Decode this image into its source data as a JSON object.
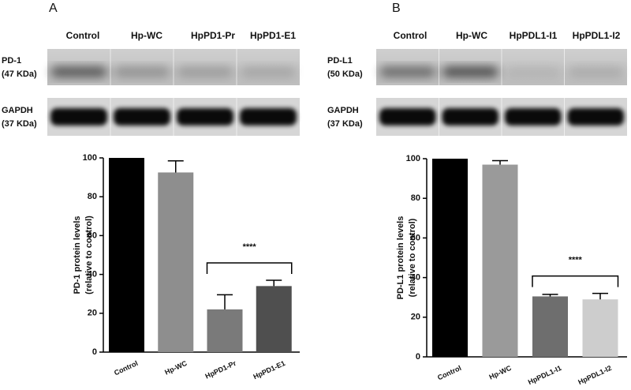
{
  "blots": [
    {
      "lanes": [
        "Control",
        "Hp-WC",
        "HpPD1-Pr",
        "HpPD1-E1"
      ],
      "rows": [
        {
          "label": [
            "PD-1",
            "(47 KDa)"
          ]
        },
        {
          "label": [
            "GAPDH",
            "(37 KDa)"
          ]
        }
      ]
    },
    {
      "lanes": [
        "Control",
        "Hp-WC",
        "HpPDL1-I1",
        "HpPDL1-I2"
      ],
      "rows": [
        {
          "label": [
            "PD-L1",
            "(50 KDa)"
          ]
        },
        {
          "label": [
            "GAPDH",
            "(37 KDa)"
          ]
        }
      ]
    }
  ],
  "chart_data": [
    {
      "type": "bar",
      "panel": "A",
      "categories": [
        "Control",
        "Hp-WC",
        "HpPD1-Pr",
        "HpPD1-E1"
      ],
      "values": [
        100,
        92.5,
        22,
        34
      ],
      "errors": [
        0,
        6,
        7.5,
        3
      ],
      "colors": [
        "#000000",
        "#8e8e8e",
        "#7a7a7a",
        "#4f4f4f"
      ],
      "ylim": [
        0,
        100
      ],
      "yticks": [
        0,
        20,
        40,
        60,
        80,
        100
      ],
      "ylabel": [
        "PD-1 protein levels",
        "(relative to control)"
      ],
      "significance": "****"
    },
    {
      "type": "bar",
      "panel": "B",
      "categories": [
        "Control",
        "Hp-WC",
        "HpPDL1-I1",
        "HpPDL1-I2"
      ],
      "values": [
        100,
        97,
        30.5,
        29
      ],
      "errors": [
        0,
        2,
        1,
        3
      ],
      "colors": [
        "#000000",
        "#9a9a9a",
        "#6e6e6e",
        "#cdcdcd"
      ],
      "ylim": [
        0,
        100
      ],
      "yticks": [
        0,
        20,
        40,
        60,
        80,
        100
      ],
      "ylabel": [
        "PD-L1 protein levels",
        "(relative to control)"
      ],
      "significance": "****"
    }
  ]
}
